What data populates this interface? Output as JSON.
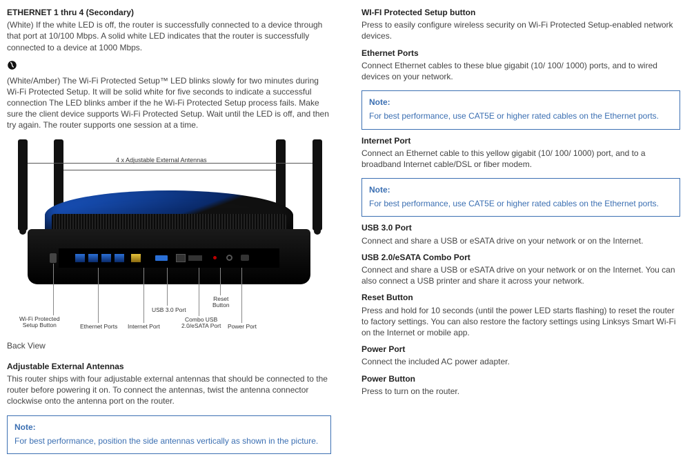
{
  "left": {
    "eth_heading": "ETHERNET 1 thru 4 (Secondary)",
    "eth_body": "(White) If the white LED is off, the router is successfully connected to a device through that port at 10/100 Mbps. A solid white LED indicates that the router is successfully connected to a device at 1000 Mbps.",
    "wps_icon": "๏̶",
    "wps_body": "(White/Amber) The Wi-Fi Protected Setup™ LED blinks slowly for two minutes during Wi-Fi Protected Setup. It will be solid white for five seconds to indicate a successful connection The LED blinks amber if the he Wi-Fi Protected Setup process fails. Make sure the client device supports Wi-Fi Protected Setup. Wait until the LED is off, and then try again. The router supports one session at a time.",
    "figure": {
      "antenna_label": "4 x Adjustable External Antennas",
      "callouts": {
        "wps": "Wi-Fi Protected\nSetup Button",
        "eth": "Ethernet Ports",
        "internet": "Internet Port",
        "usb3": "USB 3.0 Port",
        "combo": "Combo USB\n2.0/eSATA Port",
        "reset": "Reset\nButton",
        "power": "Power Port"
      }
    },
    "back_view": "Back View",
    "antennas_heading": "Adjustable External Antennas",
    "antennas_body": "This router ships with four adjustable external antennas that should be connected to the router before powering it on. To connect the antennas, twist the antenna connector clockwise onto the antenna port on the router.",
    "note1_label": "Note:",
    "note1_text": "For best performance, position the side antennas vertically as shown in the picture."
  },
  "right": {
    "wps_heading": "WI-FI Protected Setup button",
    "wps_body": "Press to easily configure wireless security on Wi-Fi Protected Setup-enabled network devices.",
    "eth_heading": "Ethernet Ports",
    "eth_body": "Connect Ethernet cables to these blue gigabit (10/ 100/ 1000) ports, and to wired devices on your network.",
    "note1_label": "Note:",
    "note1_text": "For best performance, use CAT5E or higher rated cables on the Ethernet ports.",
    "internet_heading": "Internet Port",
    "internet_body": "Connect an Ethernet cable to this yellow gigabit (10/ 100/ 1000) port, and to a broadband Internet cable/DSL or fiber modem.",
    "note2_label": "Note:",
    "note2_text": "For best performance, use CAT5E or higher rated cables on the Ethernet ports.",
    "usb3_heading": "USB 3.0 Port",
    "usb3_body": "Connect and share a USB or eSATA drive on your network or on the Internet.",
    "combo_heading": "USB 2.0/eSATA Combo Port",
    "combo_body": "Connect and share a USB or eSATA drive on your network or on the Internet. You can also connect a USB printer and share it across your network.",
    "reset_heading": "Reset Button",
    "reset_body": "Press and hold for 10 seconds (until the power LED starts flashing) to reset the router to factory settings. You can also restore the factory settings using Linksys Smart Wi-Fi on the Internet or mobile app.",
    "powerport_heading": "Power Port",
    "powerport_body": "Connect the included AC power adapter.",
    "powerbtn_heading": "Power Button",
    "powerbtn_body": "Press to turn on the router."
  }
}
